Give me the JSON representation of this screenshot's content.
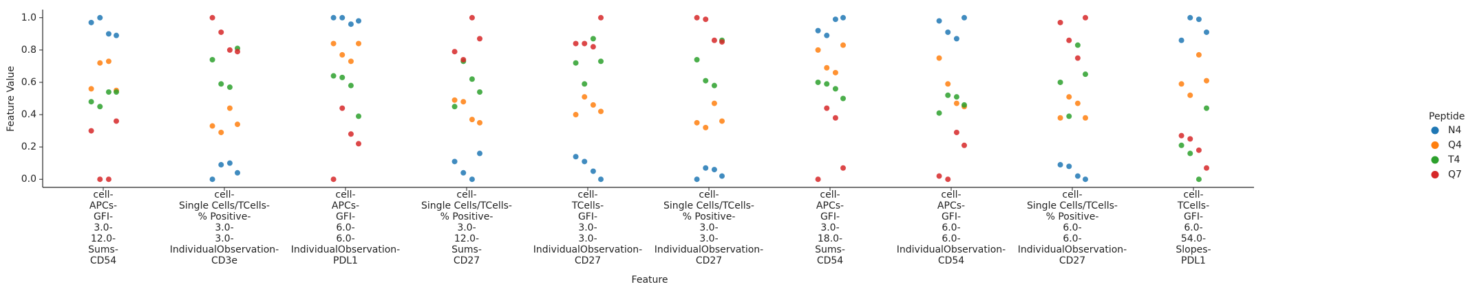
{
  "chart_data": {
    "type": "strip",
    "xlabel": "Feature",
    "ylabel": "Feature Value",
    "categories": [
      "cell-\nAPCs-\nGFI-\n3.0-\n12.0-\nSums-\nCD54",
      "cell-\nSingle Cells/TCells-\n% Positive-\n3.0-\n3.0-\nIndividualObservation-\nCD3e",
      "cell-\nAPCs-\nGFI-\n6.0-\n6.0-\nIndividualObservation-\nPDL1",
      "cell-\nSingle Cells/TCells-\n% Positive-\n3.0-\n12.0-\nSums-\nCD27",
      "cell-\nTCells-\nGFI-\n3.0-\n3.0-\nIndividualObservation-\nCD27",
      "cell-\nSingle Cells/TCells-\n% Positive-\n3.0-\n3.0-\nIndividualObservation-\nCD27",
      "cell-\nAPCs-\nGFI-\n3.0-\n18.0-\nSums-\nCD54",
      "cell-\nAPCs-\nGFI-\n6.0-\n6.0-\nIndividualObservation-\nCD54",
      "cell-\nSingle Cells/TCells-\n% Positive-\n6.0-\n6.0-\nIndividualObservation-\nCD27",
      "cell-\nTCells-\nGFI-\n6.0-\n54.0-\nSlopes-\nPDL1"
    ],
    "legend_title": "Peptide",
    "series": [
      {
        "name": "N4",
        "color": "#1f77b4",
        "values": [
          [
            0.97,
            1.0,
            0.9,
            0.89
          ],
          [
            0.09,
            0.1,
            0.04,
            0.0
          ],
          [
            0.96,
            0.98,
            1.0,
            1.0
          ],
          [
            0.16,
            0.11,
            0.04,
            0.0
          ],
          [
            0.14,
            0.11,
            0.05,
            0.0
          ],
          [
            0.07,
            0.06,
            0.02,
            0.0
          ],
          [
            0.99,
            1.0,
            0.92,
            0.89
          ],
          [
            1.0,
            0.98,
            0.91,
            0.87
          ],
          [
            0.09,
            0.08,
            0.02,
            0.0
          ],
          [
            1.0,
            0.99,
            0.91,
            0.86
          ]
        ]
      },
      {
        "name": "Q4",
        "color": "#ff7f0e",
        "values": [
          [
            0.72,
            0.73,
            0.55,
            0.56
          ],
          [
            0.44,
            0.34,
            0.33,
            0.29
          ],
          [
            0.84,
            0.84,
            0.77,
            0.73
          ],
          [
            0.49,
            0.48,
            0.37,
            0.35
          ],
          [
            0.51,
            0.46,
            0.42,
            0.4
          ],
          [
            0.47,
            0.36,
            0.35,
            0.32
          ],
          [
            0.83,
            0.8,
            0.69,
            0.66
          ],
          [
            0.75,
            0.59,
            0.47,
            0.45
          ],
          [
            0.51,
            0.47,
            0.38,
            0.38
          ],
          [
            0.77,
            0.61,
            0.59,
            0.52
          ]
        ]
      },
      {
        "name": "T4",
        "color": "#2ca02c",
        "values": [
          [
            0.54,
            0.54,
            0.48,
            0.45
          ],
          [
            0.81,
            0.74,
            0.59,
            0.57
          ],
          [
            0.64,
            0.63,
            0.58,
            0.39
          ],
          [
            0.73,
            0.62,
            0.54,
            0.45
          ],
          [
            0.87,
            0.73,
            0.72,
            0.59
          ],
          [
            0.86,
            0.74,
            0.61,
            0.58
          ],
          [
            0.6,
            0.59,
            0.56,
            0.5
          ],
          [
            0.52,
            0.51,
            0.46,
            0.41
          ],
          [
            0.83,
            0.65,
            0.6,
            0.39
          ],
          [
            0.44,
            0.21,
            0.16,
            0.0
          ]
        ]
      },
      {
        "name": "Q7",
        "color": "#d62728",
        "values": [
          [
            0.36,
            0.3,
            0.0,
            0.0
          ],
          [
            1.0,
            0.91,
            0.8,
            0.79
          ],
          [
            0.44,
            0.28,
            0.22,
            0.0
          ],
          [
            1.0,
            0.87,
            0.79,
            0.74
          ],
          [
            1.0,
            0.84,
            0.84,
            0.82
          ],
          [
            1.0,
            0.99,
            0.86,
            0.85
          ],
          [
            0.44,
            0.38,
            0.07,
            0.0
          ],
          [
            0.29,
            0.21,
            0.02,
            0.0
          ],
          [
            1.0,
            0.97,
            0.86,
            0.75
          ],
          [
            0.27,
            0.25,
            0.18,
            0.07
          ]
        ]
      }
    ],
    "ylim": [
      -0.05,
      1.05
    ],
    "yticks": [
      {
        "value": 0,
        "label": "0.0"
      },
      {
        "value": 0.2,
        "label": "0.2"
      },
      {
        "value": 0.4,
        "label": "0.4"
      },
      {
        "value": 0.6,
        "label": "0.6"
      },
      {
        "value": 0.8,
        "label": "0.8"
      },
      {
        "value": 1,
        "label": "1.0"
      }
    ]
  }
}
